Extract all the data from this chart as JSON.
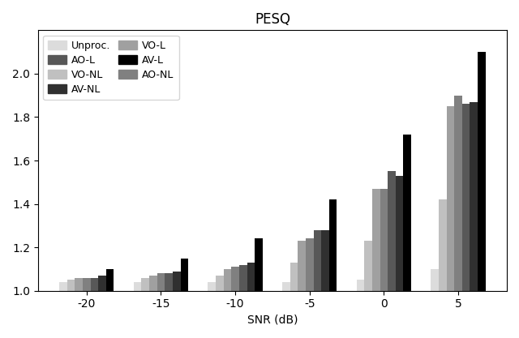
{
  "title": "PESQ",
  "xlabel": "SNR (dB)",
  "ylabel": "",
  "snr_labels": [
    "-20",
    "-15",
    "-10",
    "-5",
    "0",
    "5"
  ],
  "snr_values": [
    -20,
    -15,
    -10,
    -5,
    0,
    5
  ],
  "series": {
    "Unproc.": [
      1.04,
      1.04,
      1.04,
      1.04,
      1.05,
      1.1
    ],
    "VO-NL": [
      1.05,
      1.06,
      1.07,
      1.13,
      1.23,
      1.42
    ],
    "VO-L": [
      1.06,
      1.07,
      1.1,
      1.23,
      1.47,
      1.85
    ],
    "AO-NL": [
      1.06,
      1.08,
      1.11,
      1.24,
      1.47,
      1.9
    ],
    "AO-L": [
      1.06,
      1.08,
      1.12,
      1.28,
      1.55,
      1.86
    ],
    "AV-NL": [
      1.07,
      1.09,
      1.13,
      1.28,
      1.53,
      1.87
    ],
    "AV-L": [
      1.1,
      1.15,
      1.24,
      1.42,
      1.72,
      2.1
    ]
  },
  "colors": {
    "Unproc.": "#dcdcdc",
    "VO-NL": "#c0c0c0",
    "VO-L": "#a0a0a0",
    "AO-NL": "#808080",
    "AO-L": "#585858",
    "AV-NL": "#303030",
    "AV-L": "#000000"
  },
  "ylim": [
    1.0,
    2.2
  ],
  "yticks": [
    1.0,
    1.2,
    1.4,
    1.6,
    1.8,
    2.0
  ],
  "plot_order": [
    "Unproc.",
    "VO-NL",
    "VO-L",
    "AO-NL",
    "AO-L",
    "AV-NL",
    "AV-L"
  ],
  "legend_col1": [
    "Unproc.",
    "VO-NL",
    "VO-L",
    "AO-NL"
  ],
  "legend_col2": [
    "AO-L",
    "AV-NL",
    "AV-L"
  ],
  "bar_width": 0.105,
  "figsize": [
    6.4,
    4.17
  ],
  "dpi": 100
}
